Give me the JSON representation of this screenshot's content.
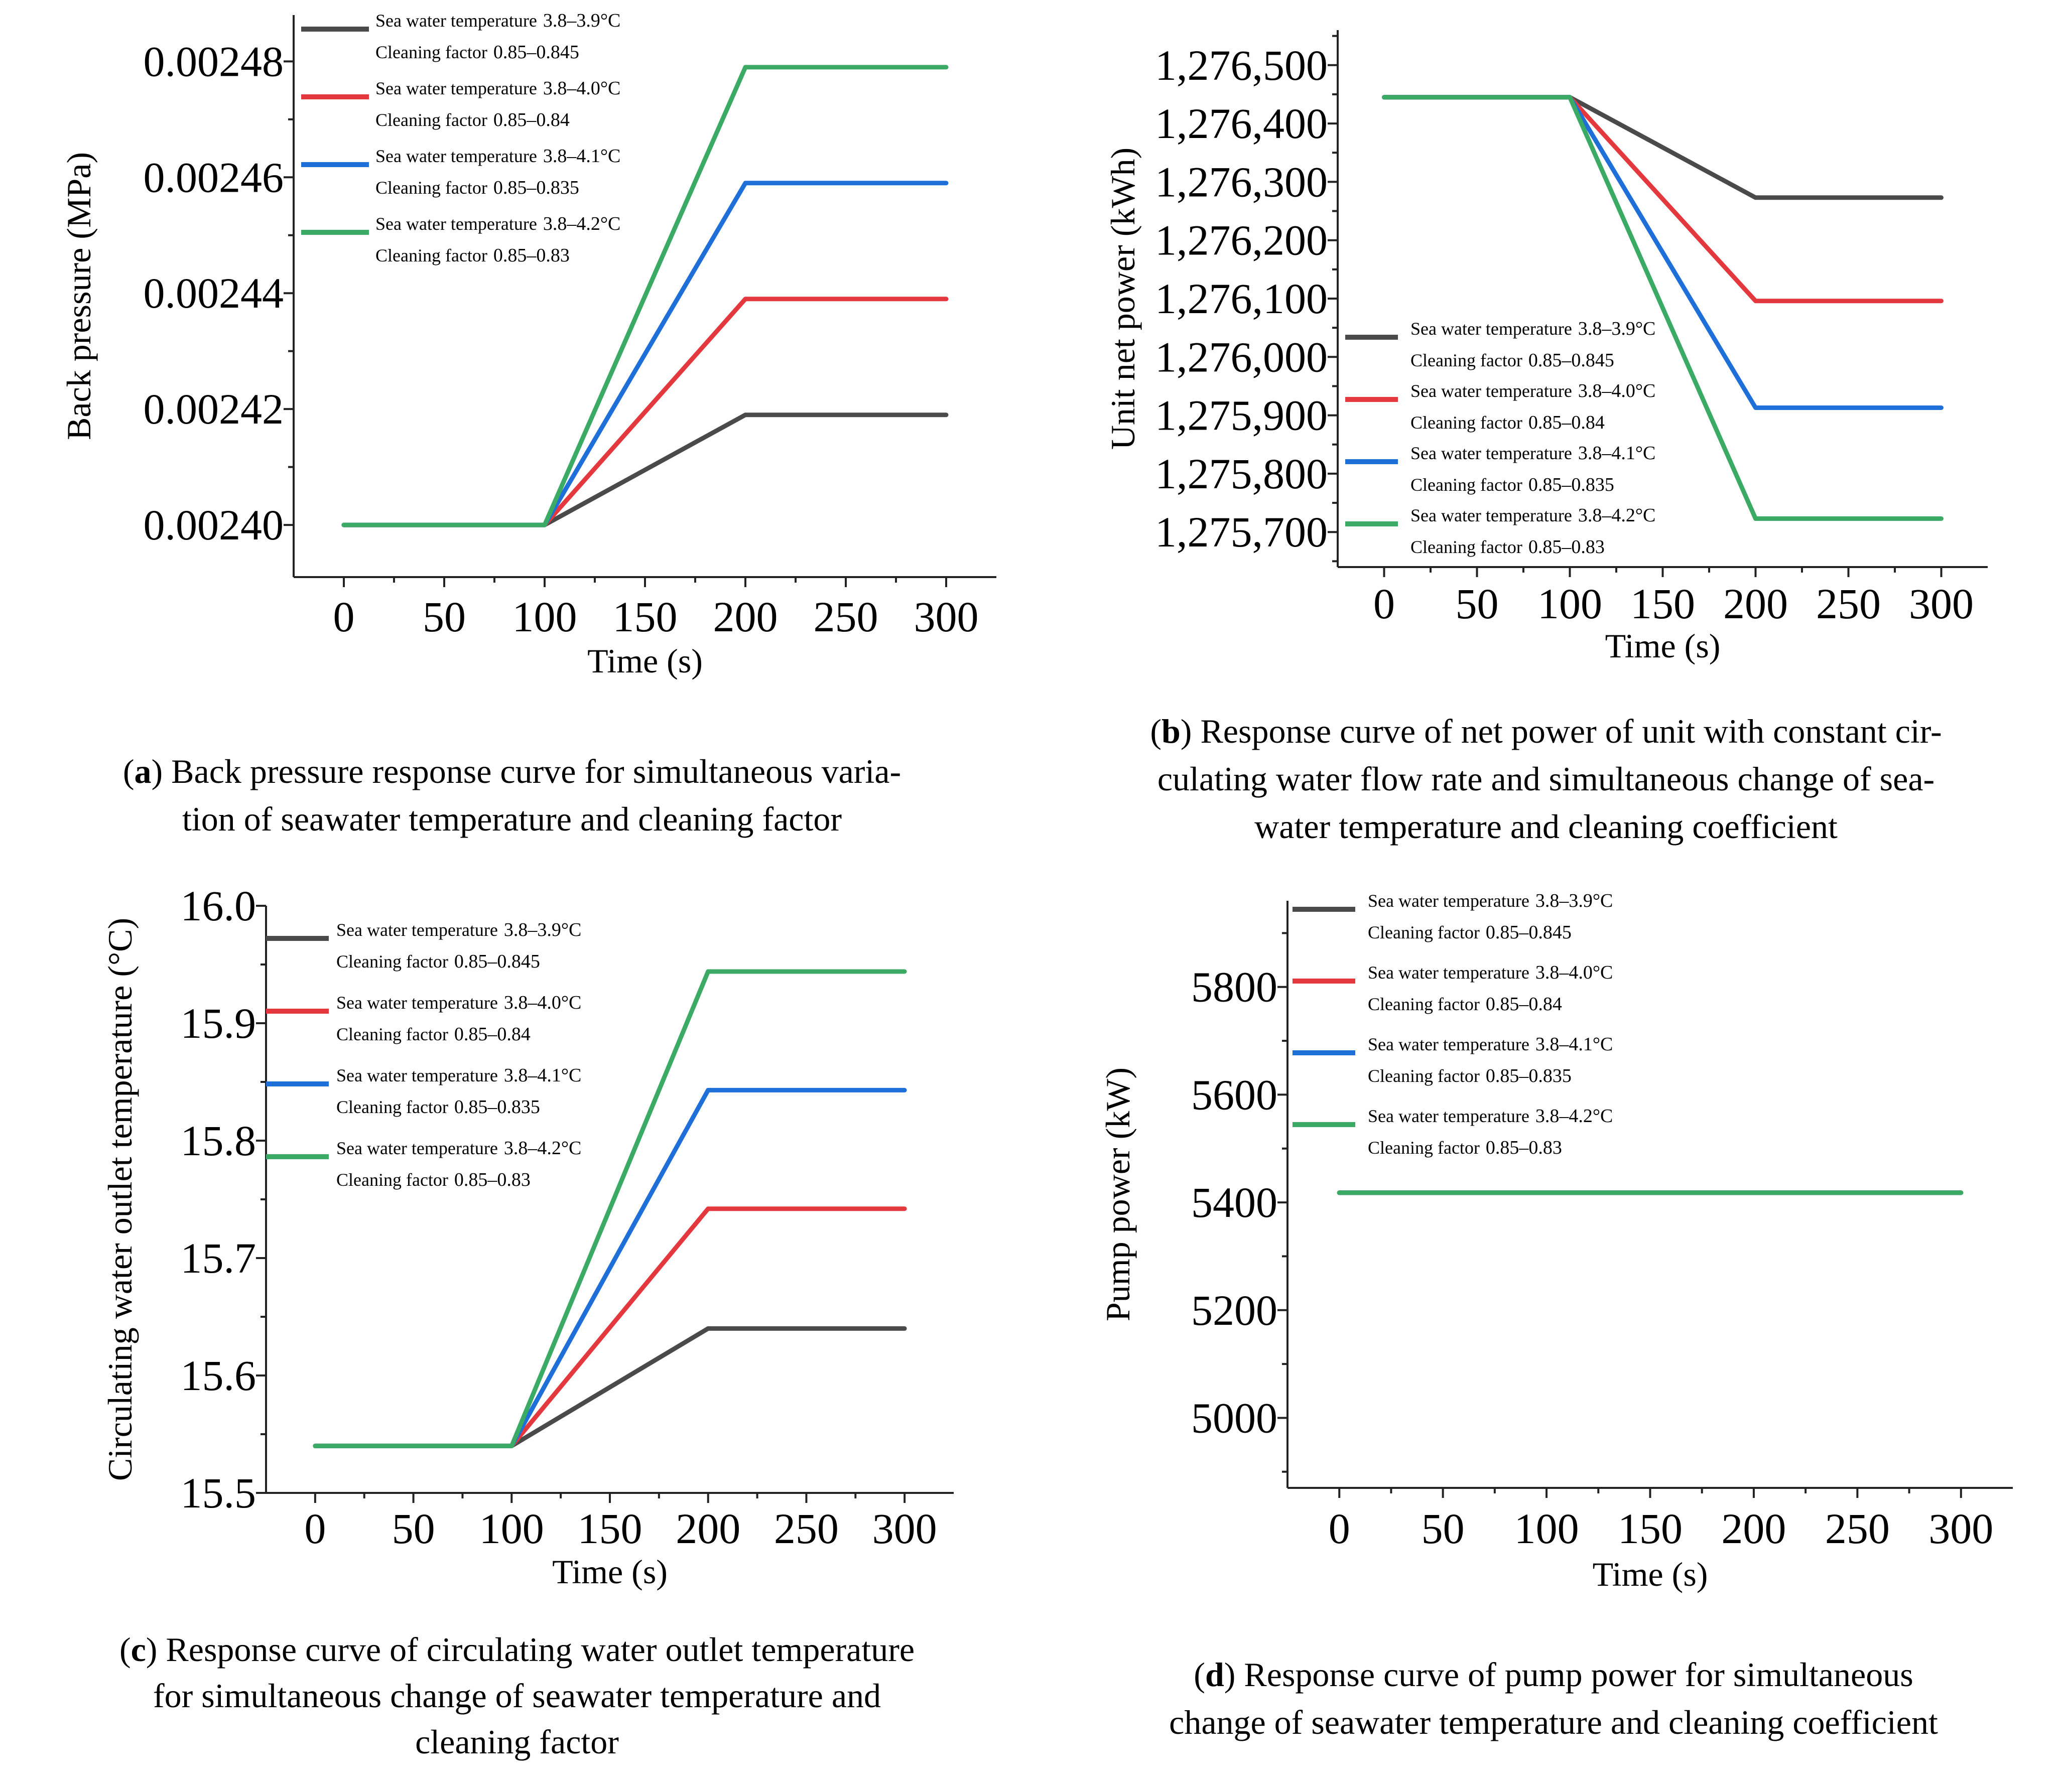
{
  "legend": [
    {
      "name": "Sea water temperature",
      "temp_range": "3.8–3.9°C",
      "factor_label": "Cleaning factor",
      "factor_range": "0.85–0.845",
      "color": "#4a4a4a"
    },
    {
      "name": "Sea water temperature",
      "temp_range": "3.8–4.0°C",
      "factor_label": "Cleaning factor",
      "factor_range": "0.85–0.84",
      "color": "#e3393e"
    },
    {
      "name": "Sea water temperature",
      "temp_range": "3.8–4.1°C",
      "factor_label": "Cleaning factor",
      "factor_range": "0.85–0.835",
      "color": "#1f6fd9"
    },
    {
      "name": "Sea water temperature",
      "temp_range": "3.8–4.2°C",
      "factor_label": "Cleaning factor",
      "factor_range": "0.85–0.83",
      "color": "#3aaa64"
    }
  ],
  "chart_data": [
    {
      "id": "a",
      "type": "line",
      "xlabel": "Time (s)",
      "ylabel": "Back pressure (MPa)",
      "xlim": [
        -25,
        325
      ],
      "ylim": [
        0.002391,
        0.002488
      ],
      "xticks": [
        "0",
        "50",
        "100",
        "150",
        "200",
        "250",
        "300"
      ],
      "xtick_values": [
        0,
        50,
        100,
        150,
        200,
        250,
        300
      ],
      "yticks": [
        "0.00240",
        "0.00242",
        "0.00244",
        "0.00246",
        "0.00248"
      ],
      "ytick_values": [
        0.0024,
        0.00242,
        0.00244,
        0.00246,
        0.00248
      ],
      "legend_position": "top-left",
      "series": [
        {
          "name": "Sea water temperature 3.8–3.9°C Cleaning factor 0.85–0.845",
          "x": [
            0,
            100,
            200,
            300
          ],
          "y": [
            0.0024,
            0.0024,
            0.002419,
            0.002419
          ]
        },
        {
          "name": "Sea water temperature 3.8–4.0°C Cleaning factor 0.85–0.84",
          "x": [
            0,
            100,
            200,
            300
          ],
          "y": [
            0.0024,
            0.0024,
            0.002439,
            0.002439
          ]
        },
        {
          "name": "Sea water temperature 3.8–4.1°C Cleaning factor 0.85–0.835",
          "x": [
            0,
            100,
            200,
            300
          ],
          "y": [
            0.0024,
            0.0024,
            0.002459,
            0.002459
          ]
        },
        {
          "name": "Sea water temperature 3.8–4.2°C Cleaning factor 0.85–0.83",
          "x": [
            0,
            100,
            200,
            300
          ],
          "y": [
            0.0024,
            0.0024,
            0.002479,
            0.002479
          ]
        }
      ],
      "caption_letter": "a",
      "caption_lines": [
        ") Back pressure response curve for simultaneous varia-",
        "tion of seawater temperature and cleaning factor"
      ]
    },
    {
      "id": "b",
      "type": "line",
      "xlabel": "Time (s)",
      "ylabel": "Unit net power (kWh)",
      "xlim": [
        -25,
        325
      ],
      "ylim": [
        1275640,
        1276560
      ],
      "xticks": [
        "0",
        "50",
        "100",
        "150",
        "200",
        "250",
        "300"
      ],
      "xtick_values": [
        0,
        50,
        100,
        150,
        200,
        250,
        300
      ],
      "yticks": [
        "1,275,700",
        "1,275,800",
        "1,275,900",
        "1,276,000",
        "1,276,100",
        "1,276,200",
        "1,276,300",
        "1,276,400",
        "1,276,500"
      ],
      "ytick_values": [
        1275700,
        1275800,
        1275900,
        1276000,
        1276100,
        1276200,
        1276300,
        1276400,
        1276500
      ],
      "legend_position": "bottom-left",
      "series": [
        {
          "name": "Sea water temperature 3.8–3.9°C Cleaning factor 0.85–0.845",
          "x": [
            0,
            100,
            200,
            300
          ],
          "y": [
            1276445,
            1276445,
            1276273,
            1276273
          ]
        },
        {
          "name": "Sea water temperature 3.8–4.0°C Cleaning factor 0.85–0.84",
          "x": [
            0,
            100,
            200,
            300
          ],
          "y": [
            1276445,
            1276445,
            1276096,
            1276096
          ]
        },
        {
          "name": "Sea water temperature 3.8–4.1°C Cleaning factor 0.85–0.835",
          "x": [
            0,
            100,
            200,
            300
          ],
          "y": [
            1276445,
            1276445,
            1275913,
            1275913
          ]
        },
        {
          "name": "Sea water temperature 3.8–4.2°C Cleaning factor 0.85–0.83",
          "x": [
            0,
            100,
            200,
            300
          ],
          "y": [
            1276445,
            1276445,
            1275723,
            1275723
          ]
        }
      ],
      "caption_letter": "b",
      "caption_lines": [
        ") Response curve of net power of unit with constant cir-",
        "culating water flow rate and simultaneous change of sea-",
        "water temperature and cleaning coefficient"
      ]
    },
    {
      "id": "c",
      "type": "line",
      "xlabel": "Time (s)",
      "ylabel": "Circulating water outlet temperature (°C)",
      "xlim": [
        -25,
        325
      ],
      "ylim": [
        15.5,
        16.0
      ],
      "xticks": [
        "0",
        "50",
        "100",
        "150",
        "200",
        "250",
        "300"
      ],
      "xtick_values": [
        0,
        50,
        100,
        150,
        200,
        250,
        300
      ],
      "yticks": [
        "15.5",
        "15.6",
        "15.7",
        "15.8",
        "15.9",
        "16.0"
      ],
      "ytick_values": [
        15.5,
        15.6,
        15.7,
        15.8,
        15.9,
        16.0
      ],
      "legend_position": "top-left",
      "series": [
        {
          "name": "Sea water temperature 3.8–3.9°C Cleaning factor 0.85–0.845",
          "x": [
            0,
            100,
            200,
            300
          ],
          "y": [
            15.54,
            15.54,
            15.64,
            15.64
          ]
        },
        {
          "name": "Sea water temperature 3.8–4.0°C Cleaning factor 0.85–0.84",
          "x": [
            0,
            100,
            200,
            300
          ],
          "y": [
            15.54,
            15.54,
            15.742,
            15.742
          ]
        },
        {
          "name": "Sea water temperature 3.8–4.1°C Cleaning factor 0.85–0.835",
          "x": [
            0,
            100,
            200,
            300
          ],
          "y": [
            15.54,
            15.54,
            15.843,
            15.843
          ]
        },
        {
          "name": "Sea water temperature 3.8–4.2°C Cleaning factor 0.85–0.83",
          "x": [
            0,
            100,
            200,
            300
          ],
          "y": [
            15.54,
            15.54,
            15.944,
            15.944
          ]
        }
      ],
      "caption_letter": "c",
      "caption_lines": [
        ") Response curve of circulating water outlet temperature",
        "for simultaneous change of seawater temperature and",
        "cleaning factor"
      ]
    },
    {
      "id": "d",
      "type": "line",
      "xlabel": "Time (s)",
      "ylabel": "Pump power (kW)",
      "xlim": [
        -25,
        325
      ],
      "ylim": [
        4870,
        5960
      ],
      "xticks": [
        "0",
        "50",
        "100",
        "150",
        "200",
        "250",
        "300"
      ],
      "xtick_values": [
        0,
        50,
        100,
        150,
        200,
        250,
        300
      ],
      "yticks": [
        "5000",
        "5200",
        "5400",
        "5600",
        "5800"
      ],
      "ytick_values": [
        5000,
        5200,
        5400,
        5600,
        5800
      ],
      "legend_position": "top-left",
      "series": [
        {
          "name": "Sea water temperature 3.8–3.9°C Cleaning factor 0.85–0.845",
          "x": [
            0,
            100,
            200,
            300
          ],
          "y": [
            5418,
            5418,
            5418,
            5418
          ]
        },
        {
          "name": "Sea water temperature 3.8–4.0°C Cleaning factor 0.85–0.84",
          "x": [
            0,
            100,
            200,
            300
          ],
          "y": [
            5418,
            5418,
            5418,
            5418
          ]
        },
        {
          "name": "Sea water temperature 3.8–4.1°C Cleaning factor 0.85–0.835",
          "x": [
            0,
            100,
            200,
            300
          ],
          "y": [
            5418,
            5418,
            5418,
            5418
          ]
        },
        {
          "name": "Sea water temperature 3.8–4.2°C Cleaning factor 0.85–0.83",
          "x": [
            0,
            100,
            200,
            300
          ],
          "y": [
            5418,
            5418,
            5418,
            5418
          ]
        }
      ],
      "caption_letter": "d",
      "caption_lines": [
        ") Response curve of pump power for simultaneous",
        "change of seawater temperature and cleaning coefficient"
      ]
    }
  ]
}
